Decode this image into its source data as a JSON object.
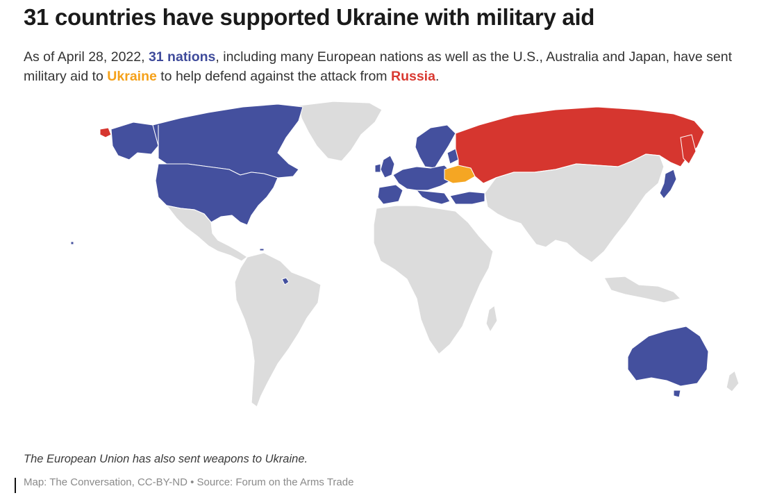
{
  "title": "31 countries have supported Ukraine with military aid",
  "subtitle": {
    "part1": "As of April 28, 2022, ",
    "nations": "31 nations",
    "part2": ", including many European nations as well as the U.S., Australia and Japan, have sent military aid to ",
    "ukraine": "Ukraine",
    "part3": " to help defend against the attack from ",
    "russia": "Russia",
    "part4": "."
  },
  "map": {
    "colors": {
      "supporter": "#44509e",
      "russia": "#d6362f",
      "ukraine": "#f5a623",
      "other": "#dcdcdc"
    },
    "supporter_countries_shown": [
      "United States",
      "Canada",
      "Europe",
      "Turkey",
      "Japan",
      "Australia"
    ],
    "target_country": "Ukraine",
    "aggressor_country": "Russia"
  },
  "note": "The European Union has also sent weapons to Ukraine.",
  "credit": "Map: The Conversation, CC-BY-ND • Source: Forum on the Arms Trade"
}
